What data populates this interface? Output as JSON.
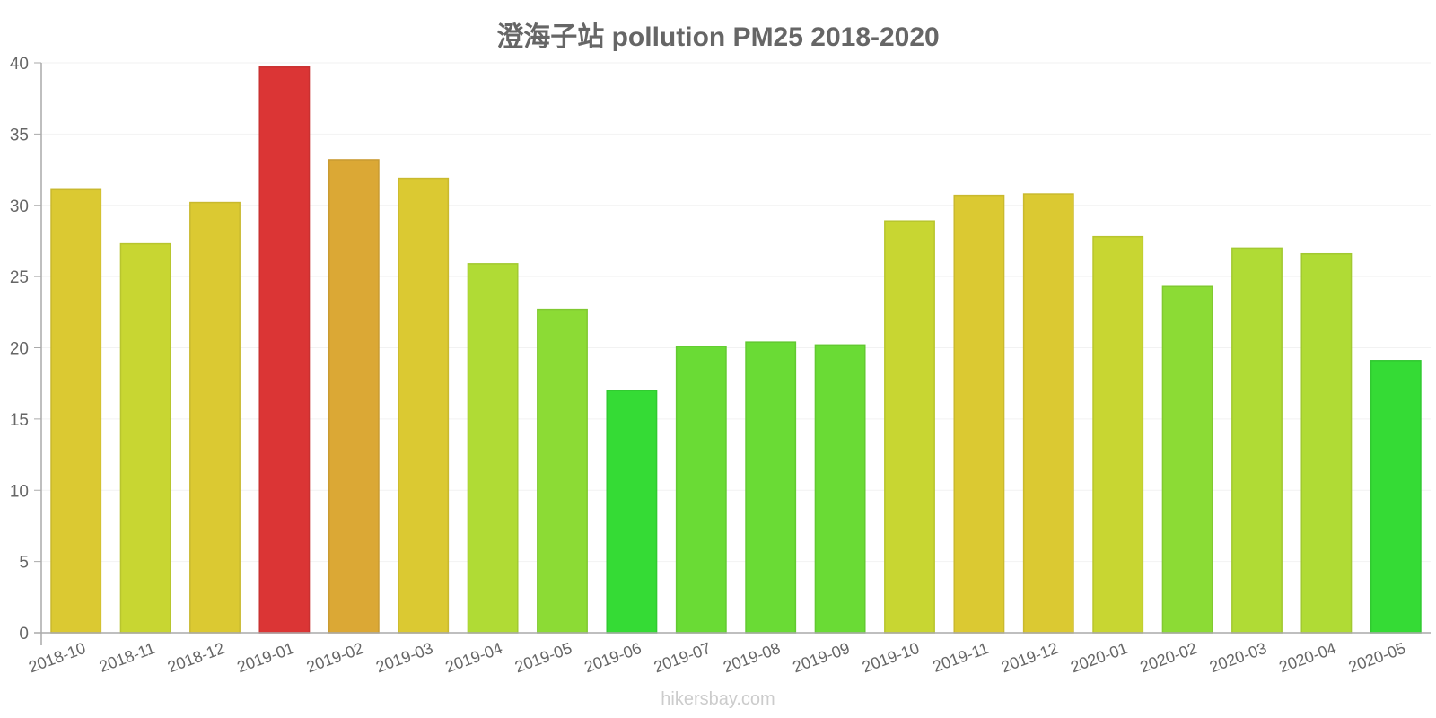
{
  "chart_data": {
    "type": "bar",
    "title": "澄海子站 pollution PM25 2018-2020",
    "xlabel": "",
    "ylabel": "",
    "ylim": [
      0,
      40
    ],
    "yticks": [
      0,
      5,
      10,
      15,
      20,
      25,
      30,
      35,
      40
    ],
    "grid": true,
    "legend": null,
    "categories": [
      "2018-10",
      "2018-11",
      "2018-12",
      "2019-01",
      "2019-02",
      "2019-03",
      "2019-04",
      "2019-05",
      "2019-06",
      "2019-07",
      "2019-08",
      "2019-09",
      "2019-10",
      "2019-11",
      "2019-12",
      "2020-01",
      "2020-02",
      "2020-03",
      "2020-04",
      "2020-05"
    ],
    "values": [
      31.1,
      27.3,
      30.2,
      39.7,
      33.2,
      31.9,
      25.9,
      22.7,
      17.0,
      20.1,
      20.4,
      20.2,
      28.9,
      30.7,
      30.8,
      27.8,
      24.3,
      27.0,
      26.6,
      19.1
    ],
    "colors": [
      "#dbc932",
      "#c8d632",
      "#dbc932",
      "#db3535",
      "#dba835",
      "#dbc932",
      "#b0db35",
      "#8cdb35",
      "#35db35",
      "#6adb35",
      "#6adb35",
      "#6adb35",
      "#c8d632",
      "#dbc932",
      "#dbc932",
      "#c8d632",
      "#8cdb35",
      "#b0db35",
      "#b0db35",
      "#35db35"
    ]
  },
  "watermark": "hikersbay.com",
  "style": {
    "text_color": "#666666",
    "axis_color": "#aaaaaa",
    "grid_color": "#f2f2f2"
  }
}
